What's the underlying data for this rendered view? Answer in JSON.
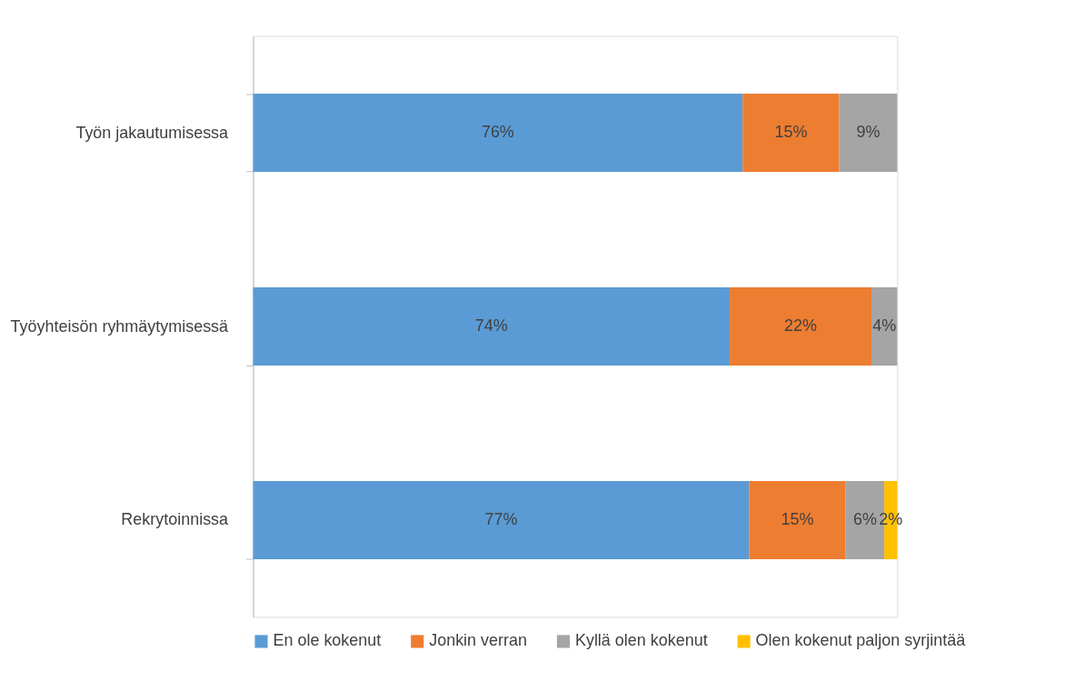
{
  "chart_data": {
    "type": "bar",
    "orientation": "horizontal",
    "stacked": true,
    "grid": false,
    "legend": "bottom",
    "categories": [
      "Työn jakautumisessa",
      "Työyhteisön ryhmäytymisessä",
      "Rekrytoinnissa"
    ],
    "series": [
      {
        "name": "En ole kokenut",
        "color": "#5b9bd5",
        "values": [
          76,
          74,
          77
        ],
        "value_labels": [
          "76%",
          "74%",
          "77%"
        ]
      },
      {
        "name": "Jonkin verran",
        "color": "#ed7d31",
        "values": [
          15,
          22,
          15
        ],
        "value_labels": [
          "15%",
          "22%",
          "15%"
        ]
      },
      {
        "name": "Kyllä olen kokenut",
        "color": "#a5a5a5",
        "values": [
          9,
          4,
          6
        ],
        "value_labels": [
          "9%",
          "4%",
          "6%"
        ]
      },
      {
        "name": "Olen kokenut paljon syrjintää",
        "color": "#ffc000",
        "values": [
          null,
          null,
          2
        ],
        "value_labels": [
          null,
          null,
          "2%"
        ]
      }
    ]
  }
}
